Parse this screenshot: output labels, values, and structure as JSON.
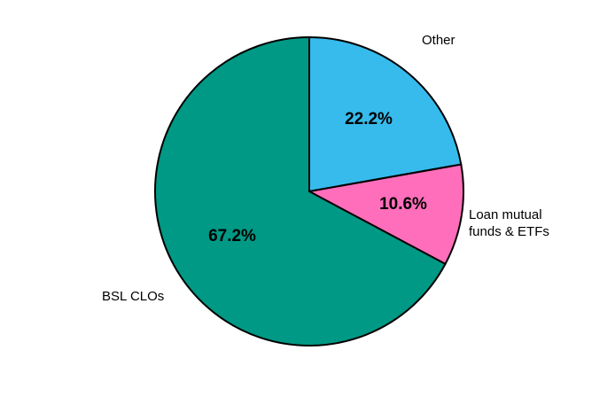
{
  "chart_data": {
    "type": "pie",
    "slices": [
      {
        "label": "Other",
        "value": 22.2,
        "value_label": "22.2%",
        "color": "#36BBEC"
      },
      {
        "label_lines": [
          "Loan mutual",
          "funds & ETFs"
        ],
        "value": 10.6,
        "value_label": "10.6%",
        "color": "#FF6EBB"
      },
      {
        "label": "BSL CLOs",
        "value": 67.2,
        "value_label": "67.2%",
        "color": "#009985"
      }
    ],
    "start_angle": "12 o'clock",
    "direction": "clockwise",
    "legend": "none"
  }
}
